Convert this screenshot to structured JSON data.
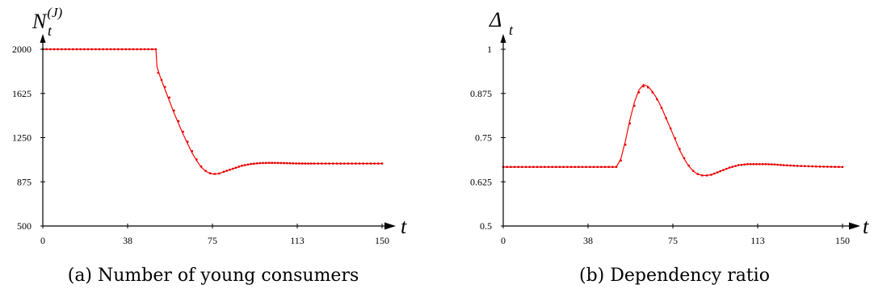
{
  "chart_data": [
    {
      "type": "line",
      "caption": "(a) Number of young consumers",
      "ylabel": {
        "main": "N",
        "sub": "t",
        "sup": "(J)"
      },
      "xlabel": "t",
      "xlim": [
        0,
        150
      ],
      "ylim": [
        500,
        2000
      ],
      "xticks": [
        "0",
        "38",
        "75",
        "113",
        "150"
      ],
      "yticks": [
        "500",
        "875",
        "1250",
        "1625",
        "2000"
      ],
      "series": [
        {
          "style": "line",
          "color": "#ff0000",
          "x": [
            0,
            10,
            20,
            30,
            40,
            50,
            50.5,
            52,
            54,
            56,
            58,
            60,
            62,
            64,
            66,
            68,
            70,
            72,
            74,
            76,
            78,
            80,
            84,
            88,
            92,
            96,
            100,
            104,
            108,
            112,
            116,
            120,
            130,
            140,
            150
          ],
          "y": [
            2000,
            2000,
            2000,
            2000,
            2000,
            2000,
            1850,
            1760,
            1660,
            1560,
            1460,
            1370,
            1280,
            1200,
            1120,
            1055,
            1000,
            965,
            945,
            940,
            945,
            960,
            985,
            1010,
            1025,
            1032,
            1035,
            1035,
            1033,
            1030,
            1030,
            1030,
            1030,
            1030,
            1030
          ]
        },
        {
          "style": "markers",
          "color": "#e00000",
          "x": [
            0,
            10,
            20,
            30,
            40,
            50,
            51,
            52.5,
            54,
            56,
            58,
            60,
            62,
            64,
            66,
            68,
            70,
            72,
            74,
            76,
            78,
            80,
            84,
            88,
            92,
            96,
            100,
            104,
            108,
            112,
            116,
            120,
            130,
            140,
            150
          ],
          "y": [
            2000,
            2000,
            2000,
            2000,
            2000,
            2000,
            1800,
            1740,
            1680,
            1590,
            1480,
            1390,
            1300,
            1215,
            1135,
            1065,
            1005,
            968,
            948,
            942,
            946,
            960,
            986,
            1012,
            1027,
            1034,
            1036,
            1035,
            1033,
            1031,
            1030,
            1030,
            1030,
            1030,
            1030
          ]
        }
      ]
    },
    {
      "type": "line",
      "caption": "(b) Dependency ratio",
      "ylabel": {
        "main": "Δ",
        "sub": "t"
      },
      "xlabel": "t",
      "xlim": [
        0,
        150
      ],
      "ylim": [
        0.5,
        1
      ],
      "xticks": [
        "0",
        "38",
        "75",
        "113",
        "150"
      ],
      "yticks": [
        "0.5",
        "0.625",
        "0.75",
        "0.875",
        "1"
      ],
      "series": [
        {
          "style": "line",
          "color": "#ff0000",
          "x": [
            0,
            10,
            20,
            30,
            40,
            50,
            52,
            54,
            56,
            58,
            60,
            62,
            64,
            66,
            68,
            70,
            72,
            74,
            76,
            78,
            80,
            82,
            84,
            86,
            88,
            90,
            92,
            96,
            100,
            104,
            108,
            112,
            116,
            120,
            124,
            130,
            140,
            150
          ],
          "y": [
            0.667,
            0.667,
            0.667,
            0.667,
            0.667,
            0.667,
            0.69,
            0.74,
            0.8,
            0.85,
            0.885,
            0.9,
            0.895,
            0.88,
            0.86,
            0.835,
            0.805,
            0.775,
            0.745,
            0.715,
            0.69,
            0.67,
            0.655,
            0.647,
            0.643,
            0.643,
            0.645,
            0.655,
            0.665,
            0.672,
            0.675,
            0.675,
            0.675,
            0.674,
            0.672,
            0.67,
            0.668,
            0.667
          ]
        },
        {
          "style": "markers",
          "color": "#e00000",
          "x": [
            0,
            10,
            20,
            30,
            40,
            50,
            52,
            54,
            56,
            58,
            60,
            62,
            64,
            66,
            68,
            70,
            72,
            74,
            76,
            78,
            80,
            82,
            84,
            86,
            88,
            90,
            92,
            96,
            100,
            104,
            108,
            112,
            116,
            120,
            124,
            130,
            140,
            150
          ],
          "y": [
            0.667,
            0.667,
            0.667,
            0.667,
            0.667,
            0.667,
            0.685,
            0.73,
            0.79,
            0.84,
            0.878,
            0.895,
            0.892,
            0.878,
            0.858,
            0.834,
            0.805,
            0.776,
            0.748,
            0.718,
            0.692,
            0.671,
            0.656,
            0.647,
            0.643,
            0.643,
            0.645,
            0.655,
            0.665,
            0.672,
            0.675,
            0.675,
            0.675,
            0.674,
            0.672,
            0.67,
            0.668,
            0.667
          ]
        }
      ]
    }
  ]
}
